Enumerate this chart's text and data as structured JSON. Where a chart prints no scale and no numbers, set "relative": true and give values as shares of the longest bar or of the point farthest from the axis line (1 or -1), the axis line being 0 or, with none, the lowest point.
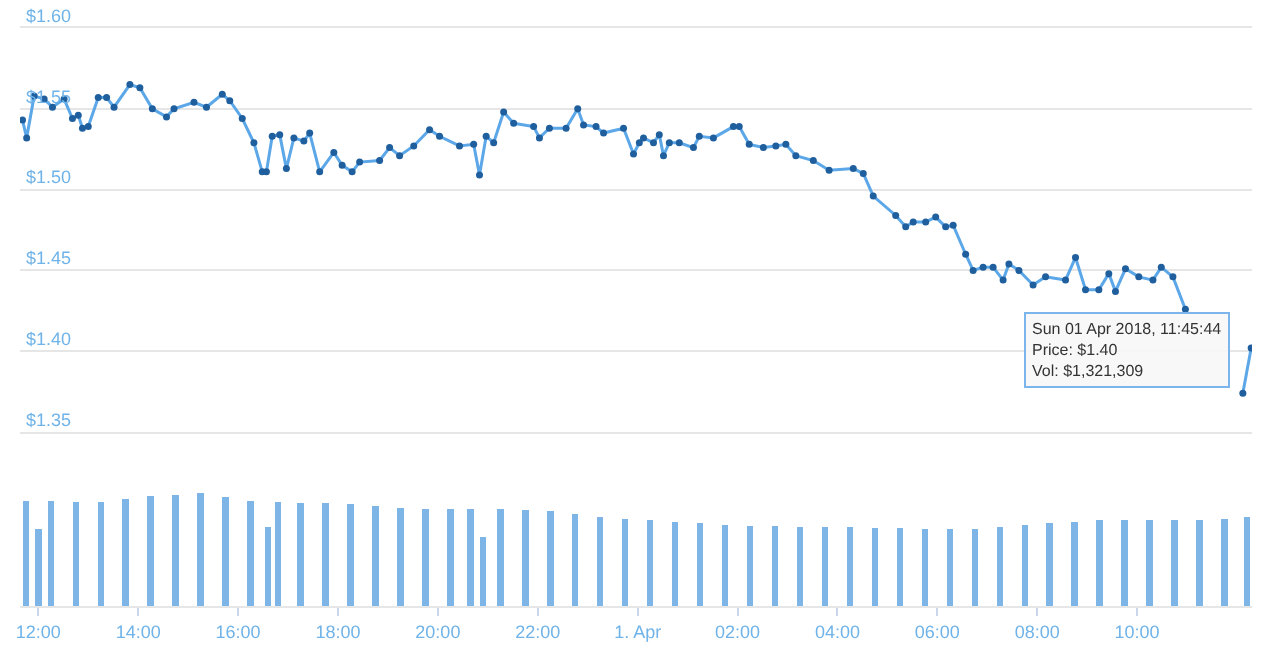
{
  "chart_data": [
    {
      "type": "line",
      "marker": "circle",
      "grid": "y",
      "tick_labels": "y",
      "xlim": [
        "2018-03-31T11:38",
        "2018-04-01T12:18"
      ],
      "ylim": [
        1.35,
        1.6
      ],
      "yticks": [
        {
          "value": 1.35,
          "label": "$1.35"
        },
        {
          "value": 1.4,
          "label": "$1.40"
        },
        {
          "value": 1.45,
          "label": "$1.45"
        },
        {
          "value": 1.5,
          "label": "$1.50"
        },
        {
          "value": 1.55,
          "label": "$1.55"
        },
        {
          "value": 1.6,
          "label": "$1.60"
        }
      ],
      "x": [
        "2018-03-31T11:41",
        "2018-03-31T11:46",
        "2018-03-31T11:55",
        "2018-03-31T12:07",
        "2018-03-31T12:17",
        "2018-03-31T12:31",
        "2018-03-31T12:41",
        "2018-03-31T12:48",
        "2018-03-31T12:53",
        "2018-03-31T13:00",
        "2018-03-31T13:12",
        "2018-03-31T13:22",
        "2018-03-31T13:31",
        "2018-03-31T13:50",
        "2018-03-31T14:02",
        "2018-03-31T14:17",
        "2018-03-31T14:34",
        "2018-03-31T14:43",
        "2018-03-31T15:07",
        "2018-03-31T15:22",
        "2018-03-31T15:41",
        "2018-03-31T15:50",
        "2018-03-31T16:05",
        "2018-03-31T16:19",
        "2018-03-31T16:29",
        "2018-03-31T16:34",
        "2018-03-31T16:41",
        "2018-03-31T16:50",
        "2018-03-31T16:58",
        "2018-03-31T17:07",
        "2018-03-31T17:19",
        "2018-03-31T17:26",
        "2018-03-31T17:38",
        "2018-03-31T17:55",
        "2018-03-31T18:05",
        "2018-03-31T18:17",
        "2018-03-31T18:26",
        "2018-03-31T18:50",
        "2018-03-31T19:02",
        "2018-03-31T19:14",
        "2018-03-31T19:31",
        "2018-03-31T19:50",
        "2018-03-31T20:02",
        "2018-03-31T20:26",
        "2018-03-31T20:43",
        "2018-03-31T20:50",
        "2018-03-31T20:58",
        "2018-03-31T21:07",
        "2018-03-31T21:19",
        "2018-03-31T21:31",
        "2018-03-31T21:55",
        "2018-03-31T22:02",
        "2018-03-31T22:14",
        "2018-03-31T22:34",
        "2018-03-31T22:48",
        "2018-03-31T22:55",
        "2018-03-31T23:10",
        "2018-03-31T23:19",
        "2018-03-31T23:43",
        "2018-03-31T23:55",
        "2018-04-01T00:02",
        "2018-04-01T00:07",
        "2018-04-01T00:19",
        "2018-04-01T00:26",
        "2018-04-01T00:31",
        "2018-04-01T00:38",
        "2018-04-01T00:50",
        "2018-04-01T01:07",
        "2018-04-01T01:14",
        "2018-04-01T01:31",
        "2018-04-01T01:55",
        "2018-04-01T02:02",
        "2018-04-01T02:14",
        "2018-04-01T02:31",
        "2018-04-01T02:46",
        "2018-04-01T02:58",
        "2018-04-01T03:10",
        "2018-04-01T03:31",
        "2018-04-01T03:50",
        "2018-04-01T04:19",
        "2018-04-01T04:31",
        "2018-04-01T04:43",
        "2018-04-01T05:10",
        "2018-04-01T05:22",
        "2018-04-01T05:31",
        "2018-04-01T05:46",
        "2018-04-01T05:58",
        "2018-04-01T06:10",
        "2018-04-01T06:19",
        "2018-04-01T06:34",
        "2018-04-01T06:43",
        "2018-04-01T06:55",
        "2018-04-01T07:07",
        "2018-04-01T07:19",
        "2018-04-01T07:26",
        "2018-04-01T07:38",
        "2018-04-01T07:55",
        "2018-04-01T08:10",
        "2018-04-01T08:34",
        "2018-04-01T08:46",
        "2018-04-01T08:58",
        "2018-04-01T09:14",
        "2018-04-01T09:26",
        "2018-04-01T09:34",
        "2018-04-01T09:46",
        "2018-04-01T10:02",
        "2018-04-01T10:19",
        "2018-04-01T10:29",
        "2018-04-01T10:43",
        "2018-04-01T10:58",
        "2018-04-01T11:10",
        "2018-04-01T11:31",
        "2018-04-01T11:46",
        "2018-04-01T11:58",
        "2018-04-01T12:07",
        "2018-04-01T12:17"
      ],
      "series": [
        {
          "color": "#5ba7e8",
          "values": [
            1.543,
            1.532,
            1.558,
            1.556,
            1.551,
            1.556,
            1.544,
            1.546,
            1.538,
            1.539,
            1.557,
            1.557,
            1.551,
            1.565,
            1.563,
            1.55,
            1.545,
            1.55,
            1.554,
            1.551,
            1.559,
            1.555,
            1.544,
            1.529,
            1.511,
            1.511,
            1.533,
            1.534,
            1.513,
            1.532,
            1.53,
            1.535,
            1.511,
            1.523,
            1.515,
            1.511,
            1.517,
            1.518,
            1.526,
            1.521,
            1.527,
            1.537,
            1.533,
            1.527,
            1.528,
            1.509,
            1.533,
            1.529,
            1.548,
            1.541,
            1.539,
            1.532,
            1.538,
            1.538,
            1.55,
            1.54,
            1.539,
            1.535,
            1.538,
            1.522,
            1.529,
            1.532,
            1.529,
            1.534,
            1.521,
            1.529,
            1.529,
            1.526,
            1.533,
            1.532,
            1.539,
            1.539,
            1.528,
            1.526,
            1.527,
            1.528,
            1.521,
            1.518,
            1.512,
            1.513,
            1.51,
            1.496,
            1.484,
            1.477,
            1.48,
            1.48,
            1.483,
            1.477,
            1.478,
            1.46,
            1.45,
            1.452,
            1.452,
            1.444,
            1.454,
            1.45,
            1.441,
            1.446,
            1.444,
            1.458,
            1.438,
            1.438,
            1.448,
            1.437,
            1.451,
            1.446,
            1.444,
            1.452,
            1.446,
            1.426,
            null,
            null,
            null,
            null,
            1.374,
            1.402
          ]
        }
      ],
      "annotations": [
        "Sun 01 Apr 2018, 11:45:44\nPrice: $1.40\nVol: $1,321,309"
      ]
    },
    {
      "type": "bar",
      "relative": true,
      "tick_labels": "x",
      "xlim": [
        "2018-03-31T11:38",
        "2018-04-01T12:18"
      ],
      "xticks": [
        {
          "value": "2018-03-31T12:00",
          "label": "12:00"
        },
        {
          "value": "2018-03-31T14:00",
          "label": "14:00"
        },
        {
          "value": "2018-03-31T16:00",
          "label": "16:00"
        },
        {
          "value": "2018-03-31T18:00",
          "label": "18:00"
        },
        {
          "value": "2018-03-31T20:00",
          "label": "20:00"
        },
        {
          "value": "2018-03-31T22:00",
          "label": "22:00"
        },
        {
          "value": "2018-04-01T00:00",
          "label": "1. Apr"
        },
        {
          "value": "2018-04-01T02:00",
          "label": "02:00"
        },
        {
          "value": "2018-04-01T04:00",
          "label": "04:00"
        },
        {
          "value": "2018-04-01T06:00",
          "label": "06:00"
        },
        {
          "value": "2018-04-01T08:00",
          "label": "08:00"
        },
        {
          "value": "2018-04-01T10:00",
          "label": "10:00"
        }
      ],
      "x": [
        "2018-03-31T11:45",
        "2018-03-31T12:00",
        "2018-03-31T12:15",
        "2018-03-31T12:45",
        "2018-03-31T13:15",
        "2018-03-31T13:45",
        "2018-03-31T14:15",
        "2018-03-31T14:45",
        "2018-03-31T15:15",
        "2018-03-31T15:45",
        "2018-03-31T16:15",
        "2018-03-31T16:36",
        "2018-03-31T16:48",
        "2018-03-31T17:15",
        "2018-03-31T17:45",
        "2018-03-31T18:15",
        "2018-03-31T18:45",
        "2018-03-31T19:15",
        "2018-03-31T19:45",
        "2018-03-31T20:15",
        "2018-03-31T20:39",
        "2018-03-31T20:54",
        "2018-03-31T21:15",
        "2018-03-31T21:45",
        "2018-03-31T22:15",
        "2018-03-31T22:45",
        "2018-03-31T23:15",
        "2018-03-31T23:45",
        "2018-04-01T00:15",
        "2018-04-01T00:45",
        "2018-04-01T01:15",
        "2018-04-01T01:45",
        "2018-04-01T02:15",
        "2018-04-01T02:45",
        "2018-04-01T03:15",
        "2018-04-01T03:45",
        "2018-04-01T04:15",
        "2018-04-01T04:45",
        "2018-04-01T05:15",
        "2018-04-01T05:45",
        "2018-04-01T06:15",
        "2018-04-01T06:45",
        "2018-04-01T07:15",
        "2018-04-01T07:45",
        "2018-04-01T08:15",
        "2018-04-01T08:45",
        "2018-04-01T09:15",
        "2018-04-01T09:45",
        "2018-04-01T10:15",
        "2018-04-01T10:45",
        "2018-04-01T11:15",
        "2018-04-01T11:45",
        "2018-04-01T12:12"
      ],
      "series": [
        {
          "color": "#7cb5e6",
          "values": [
            0.93,
            0.68,
            0.93,
            0.92,
            0.92,
            0.95,
            0.97,
            0.98,
            1,
            0.96,
            0.93,
            0.7,
            0.92,
            0.91,
            0.91,
            0.9,
            0.88,
            0.87,
            0.86,
            0.86,
            0.86,
            0.61,
            0.86,
            0.85,
            0.84,
            0.81,
            0.79,
            0.77,
            0.76,
            0.74,
            0.73,
            0.72,
            0.71,
            0.71,
            0.7,
            0.7,
            0.7,
            0.69,
            0.69,
            0.68,
            0.68,
            0.68,
            0.7,
            0.72,
            0.73,
            0.74,
            0.76,
            0.76,
            0.76,
            0.76,
            0.76,
            0.77,
            0.79
          ]
        }
      ]
    }
  ]
}
